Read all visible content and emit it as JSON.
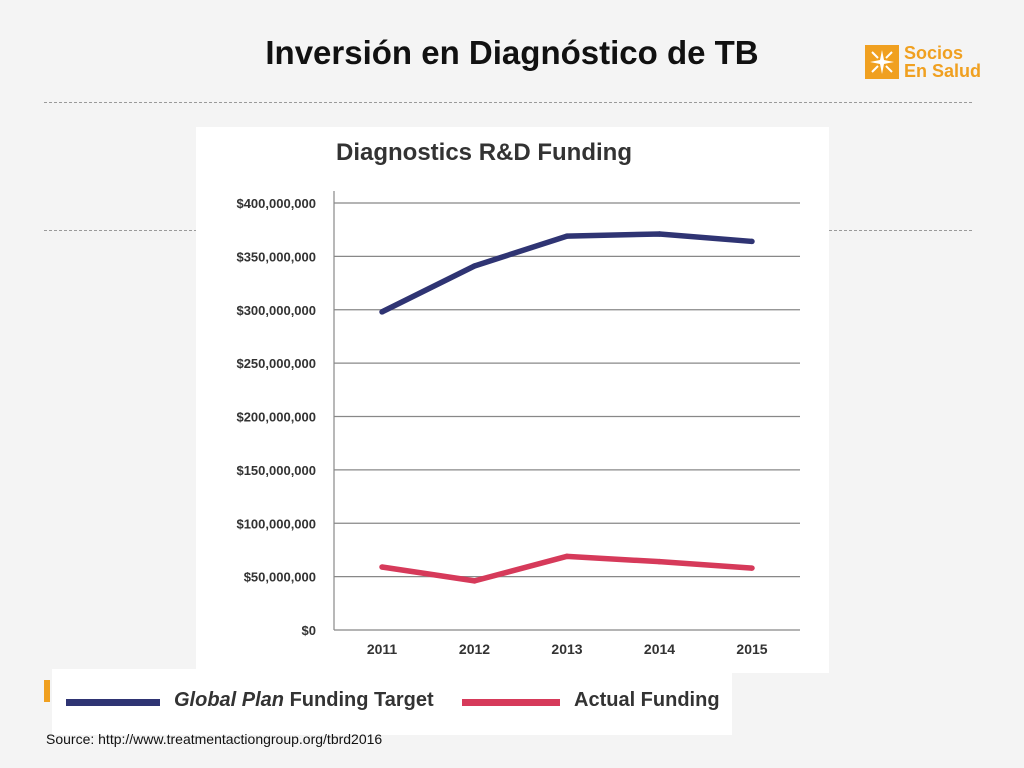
{
  "slide": {
    "title": "Inversión en Diagnóstico de TB",
    "source": "Source: http://www.treatmentactiongroup.org/tbrd2016",
    "logo": {
      "line1": "Socios",
      "line2": "En Salud",
      "color": "#f0a020",
      "icon": "socios-en-salud-logo-icon"
    }
  },
  "legend": {
    "target_label_italic": "Global Plan",
    "target_label_rest": " Funding Target",
    "actual_label": "Actual Funding"
  },
  "chart_data": {
    "type": "line",
    "title": "Diagnostics R&D Funding",
    "xlabel": "",
    "ylabel": "",
    "categories": [
      "2011",
      "2012",
      "2013",
      "2014",
      "2015"
    ],
    "ylim": [
      0,
      400000000
    ],
    "yticks": [
      0,
      50000000,
      100000000,
      150000000,
      200000000,
      250000000,
      300000000,
      350000000,
      400000000
    ],
    "ytick_labels": [
      "$0",
      "$50,000,000",
      "$100,000,000",
      "$150,000,000",
      "$200,000,000",
      "$250,000,000",
      "$300,000,000",
      "$350,000,000",
      "$400,000,000"
    ],
    "grid": true,
    "legend_position": "bottom",
    "series": [
      {
        "name": "Global Plan Funding Target",
        "color": "#2f3473",
        "values": [
          298000000,
          341000000,
          369000000,
          371000000,
          364000000
        ]
      },
      {
        "name": "Actual Funding",
        "color": "#d63a5a",
        "values": [
          59000000,
          46000000,
          69000000,
          64000000,
          58000000
        ]
      }
    ]
  }
}
